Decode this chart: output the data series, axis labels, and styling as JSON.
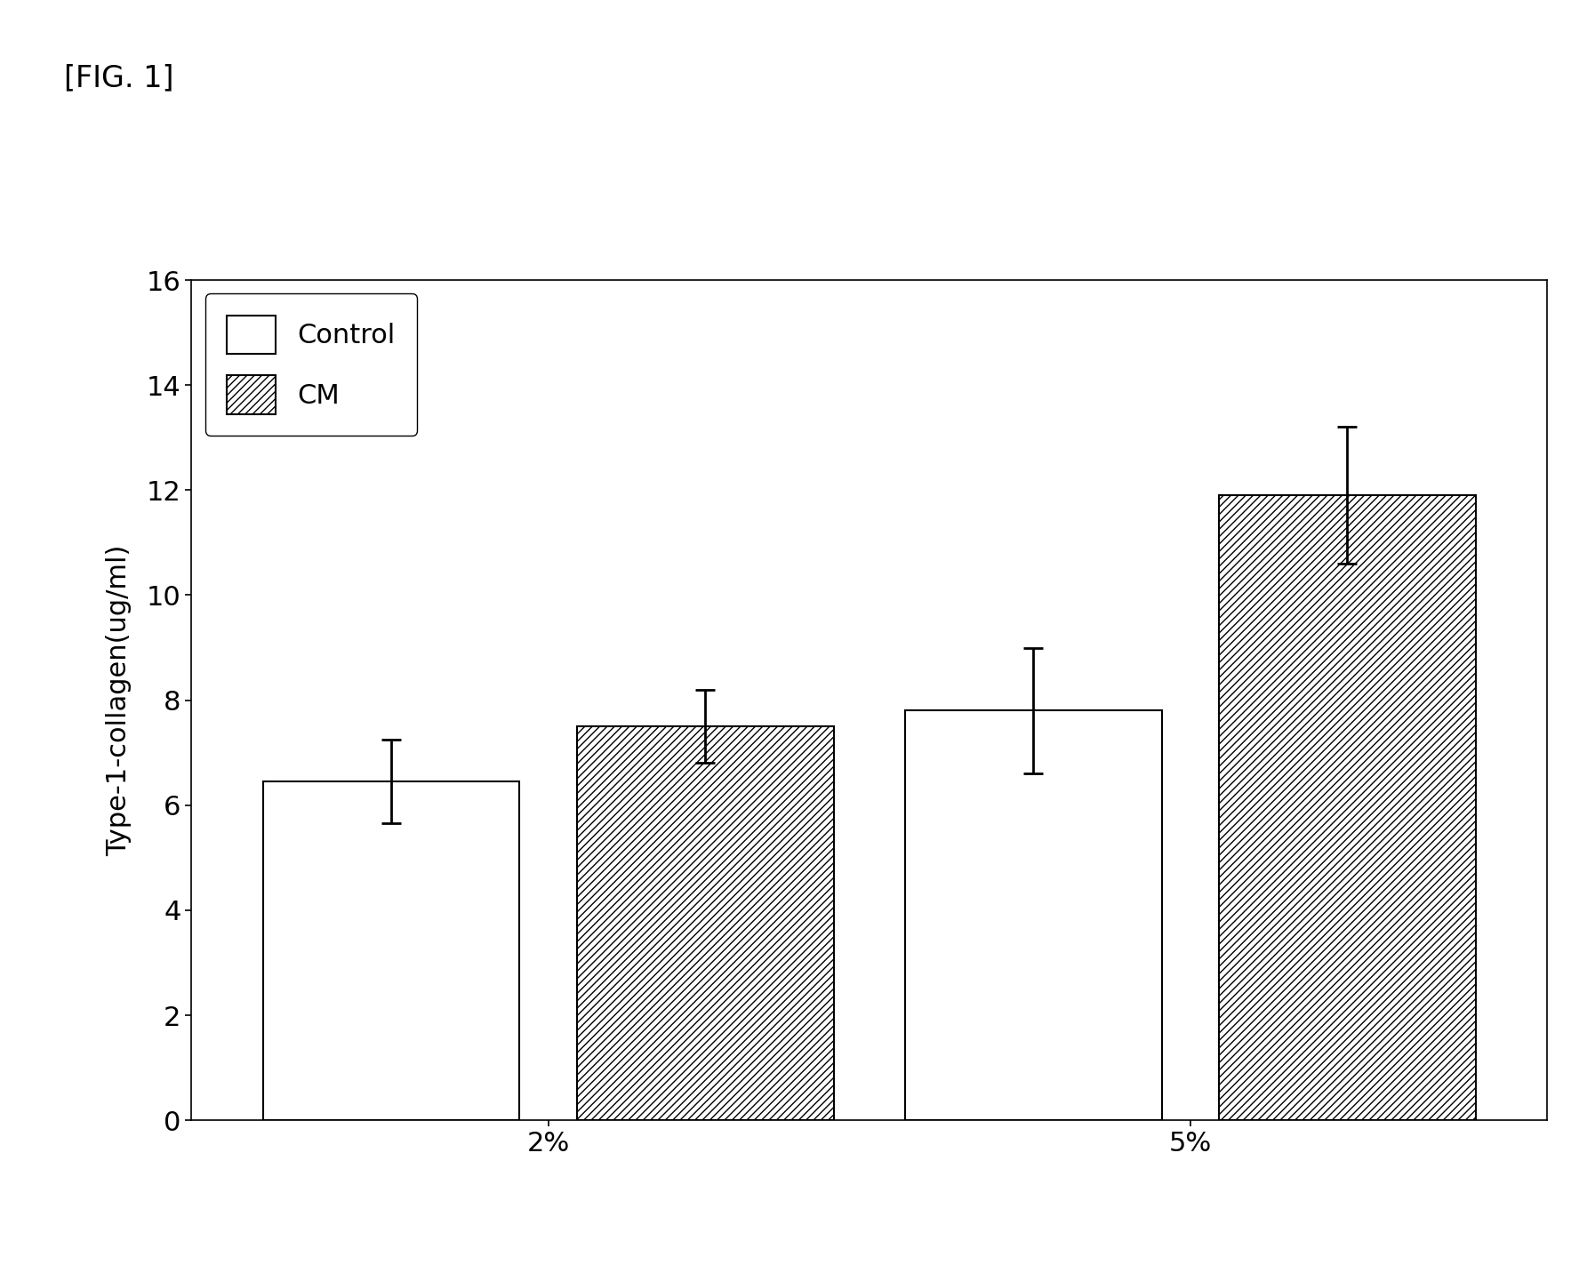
{
  "ylabel": "Type-1-collagen(ug/ml)",
  "categories": [
    "2%",
    "5%"
  ],
  "groups": [
    "Control",
    "CM"
  ],
  "values": {
    "Control": [
      6.45,
      7.8
    ],
    "CM": [
      7.5,
      11.9
    ]
  },
  "errors": {
    "Control": [
      0.8,
      1.2
    ],
    "CM": [
      0.7,
      1.3
    ]
  },
  "ylim": [
    0,
    16
  ],
  "yticks": [
    0,
    2,
    4,
    6,
    8,
    10,
    12,
    14,
    16
  ],
  "bar_width": 0.18,
  "colors": {
    "Control": "#ffffff",
    "CM": "#ffffff"
  },
  "edge_color": "#000000",
  "background_color": "#ffffff",
  "fig_label": "[FIG. 1]",
  "hatch_cm": "////",
  "legend_fontsize": 22,
  "axis_fontsize": 22,
  "tick_fontsize": 22,
  "fig_label_fontsize": 24,
  "capsize": 8,
  "error_linewidth": 2.0,
  "x_positions": [
    0.3,
    0.75
  ],
  "xlim": [
    0.05,
    1.0
  ],
  "bar_gap": 0.04
}
